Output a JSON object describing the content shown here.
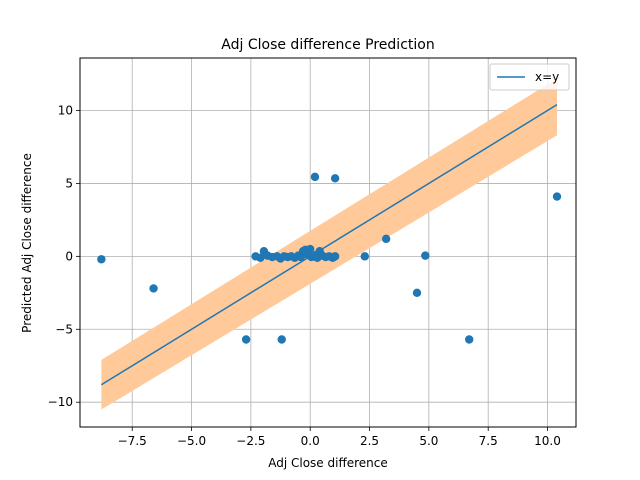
{
  "chart_data": {
    "type": "scatter",
    "title": "Adj Close difference Prediction",
    "xlabel": "Adj Close difference",
    "ylabel": "Predicted Adj Close difference",
    "xlim": [
      -9.7,
      11.2
    ],
    "ylim": [
      -11.7,
      13.6
    ],
    "grid": true,
    "legend_position": "top-right",
    "xticks": [
      -7.5,
      -5.0,
      -2.5,
      0.0,
      2.5,
      5.0,
      7.5,
      10.0
    ],
    "xtick_labels": [
      "−7.5",
      "−5.0",
      "−2.5",
      "0.0",
      "2.5",
      "5.0",
      "7.5",
      "10.0"
    ],
    "yticks": [
      -10,
      -5,
      0,
      5,
      10
    ],
    "ytick_labels": [
      "−10",
      "−5",
      "0",
      "5",
      "10"
    ],
    "colors": {
      "points": "#1f77b4",
      "line": "#1f77b4",
      "band": "#ffc999",
      "grid": "#b0b0b0"
    },
    "series": [
      {
        "name": "x=y",
        "kind": "line",
        "x": [
          -8.8,
          10.4
        ],
        "y": [
          -8.8,
          10.4
        ],
        "band_lower": [
          -10.5,
          8.3
        ],
        "band_upper": [
          -7.1,
          12.2
        ]
      },
      {
        "kind": "points",
        "points": [
          [
            -8.8,
            -0.2
          ],
          [
            -6.6,
            -2.2
          ],
          [
            -2.7,
            -5.7
          ],
          [
            -1.2,
            -5.7
          ],
          [
            -2.3,
            0.0
          ],
          [
            -2.1,
            -0.1
          ],
          [
            -1.95,
            0.35
          ],
          [
            -1.8,
            0.05
          ],
          [
            -1.6,
            -0.05
          ],
          [
            -1.4,
            0.0
          ],
          [
            -1.25,
            -0.15
          ],
          [
            -1.1,
            0.0
          ],
          [
            -0.95,
            -0.05
          ],
          [
            -0.8,
            0.0
          ],
          [
            -0.65,
            -0.1
          ],
          [
            -0.5,
            0.05
          ],
          [
            -0.4,
            -0.05
          ],
          [
            -0.3,
            0.35
          ],
          [
            -0.2,
            0.45
          ],
          [
            -0.1,
            0.1
          ],
          [
            0.0,
            0.5
          ],
          [
            0.05,
            -0.05
          ],
          [
            0.15,
            0.0
          ],
          [
            0.25,
            0.1
          ],
          [
            0.3,
            -0.1
          ],
          [
            0.4,
            0.35
          ],
          [
            0.5,
            0.05
          ],
          [
            0.65,
            -0.05
          ],
          [
            0.8,
            0.0
          ],
          [
            0.95,
            -0.1
          ],
          [
            1.05,
            0.0
          ],
          [
            0.2,
            5.45
          ],
          [
            1.05,
            5.35
          ],
          [
            2.3,
            0.0
          ],
          [
            3.2,
            1.2
          ],
          [
            4.5,
            -2.5
          ],
          [
            4.85,
            0.05
          ],
          [
            6.7,
            -5.7
          ],
          [
            10.4,
            4.1
          ]
        ]
      }
    ]
  }
}
